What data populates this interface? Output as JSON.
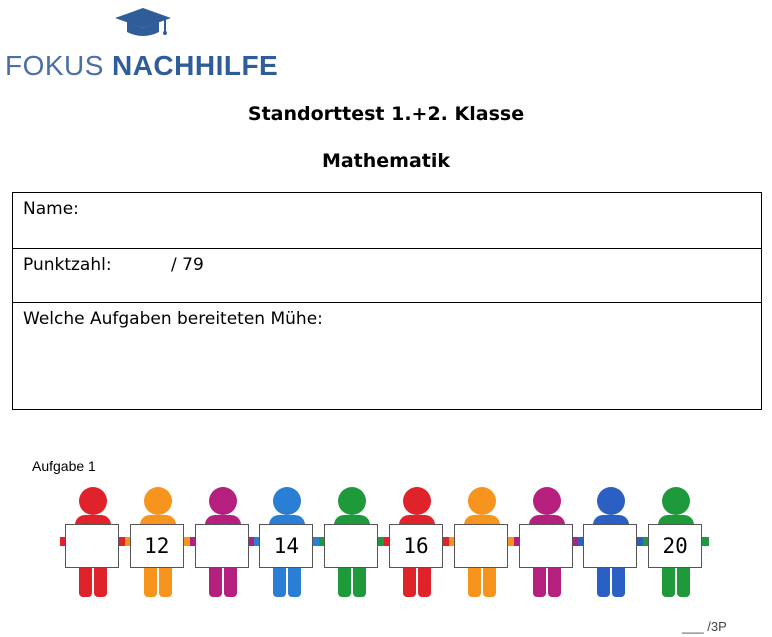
{
  "logo": {
    "word_light": "FOKUS",
    "word_bold": "NACHHILFE",
    "icon": "graduation-cap-icon",
    "color": "#2f5d9a"
  },
  "heading": {
    "title": "Standorttest 1.+2. Klasse",
    "subject": "Mathematik"
  },
  "info_table": {
    "name_label": "Name:",
    "score_label": "Punktzahl:",
    "score_max": "/ 79",
    "difficulty_label": "Welche Aufgaben bereiteten Mühe:"
  },
  "task1": {
    "label": "Aufgabe 1",
    "points": "___ /3P",
    "figures": [
      {
        "color": "#e0222a",
        "number": ""
      },
      {
        "color": "#f7941d",
        "number": "12"
      },
      {
        "color": "#b5207e",
        "number": ""
      },
      {
        "color": "#2a7fd4",
        "number": "14"
      },
      {
        "color": "#1f9a3b",
        "number": ""
      },
      {
        "color": "#e0222a",
        "number": "16"
      },
      {
        "color": "#f7941d",
        "number": ""
      },
      {
        "color": "#b5207e",
        "number": ""
      },
      {
        "color": "#2a5fc4",
        "number": ""
      },
      {
        "color": "#1f9a3b",
        "number": "20"
      }
    ]
  }
}
